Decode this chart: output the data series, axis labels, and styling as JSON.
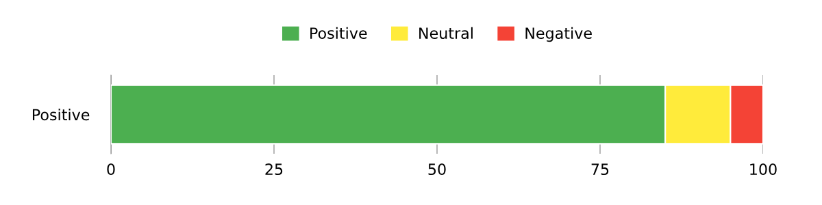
{
  "chart_data": {
    "type": "bar",
    "orientation": "horizontal",
    "stacked": true,
    "categories": [
      "Positive"
    ],
    "series": [
      {
        "name": "Positive",
        "color": "#4caf50",
        "values": [
          85
        ]
      },
      {
        "name": "Neutral",
        "color": "#ffeb3b",
        "values": [
          10
        ]
      },
      {
        "name": "Negative",
        "color": "#f44336",
        "values": [
          5
        ]
      }
    ],
    "xlim": [
      0,
      100
    ],
    "xticks": [
      0,
      25,
      50,
      75,
      100
    ],
    "grid": "x",
    "legend": "top"
  }
}
